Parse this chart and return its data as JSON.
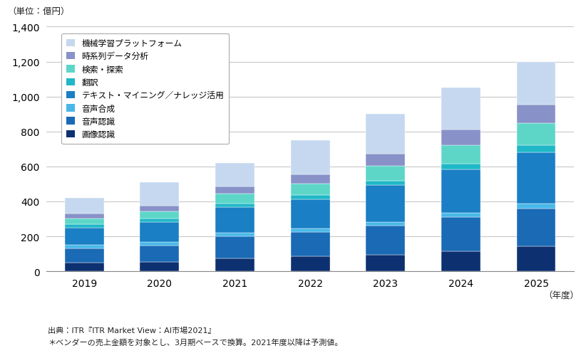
{
  "years": [
    "2019",
    "2020",
    "2021",
    "2022",
    "2023",
    "2024",
    "2025"
  ],
  "categories": [
    "画像認識",
    "音声認識",
    "音声合成",
    "テキスト・マイニング／ナレッジ活用",
    "翻訳",
    "検索・探索",
    "時系列データ分析",
    "機械学習プラットフォーム"
  ],
  "colors": [
    "#0d3070",
    "#1a6ab5",
    "#49b8e8",
    "#1a7fc4",
    "#20b8c8",
    "#5dd6c8",
    "#8892c8",
    "#c5d8ef"
  ],
  "data": {
    "画像認識": [
      48,
      52,
      75,
      85,
      95,
      115,
      145
    ],
    "音声認識": [
      85,
      95,
      125,
      140,
      165,
      195,
      215
    ],
    "音声合成": [
      18,
      20,
      22,
      22,
      22,
      25,
      28
    ],
    "テキスト・マイニング／ナレッジ活用": [
      100,
      115,
      145,
      165,
      210,
      250,
      295
    ],
    "翻訳": [
      18,
      20,
      22,
      25,
      28,
      32,
      38
    ],
    "検索・探索": [
      35,
      42,
      55,
      65,
      85,
      105,
      125
    ],
    "時系列データ分析": [
      28,
      32,
      42,
      52,
      68,
      88,
      108
    ],
    "機械学習プラットフォーム": [
      88,
      134,
      134,
      196,
      227,
      240,
      246
    ]
  },
  "ylim": [
    0,
    1400
  ],
  "yticks": [
    0,
    200,
    400,
    600,
    800,
    1000,
    1200,
    1400
  ],
  "unit_label": "（単位：億円）",
  "xlabel": "（年度）",
  "source_text": "出典：ITR『ITR Market View：AI市場2021』",
  "note_text": "＊ベンダーの売上金額を対象とし、3月期ベースで換算。2021年度以降は予測値。",
  "background_color": "#ffffff",
  "grid_color": "#c8c8c8"
}
